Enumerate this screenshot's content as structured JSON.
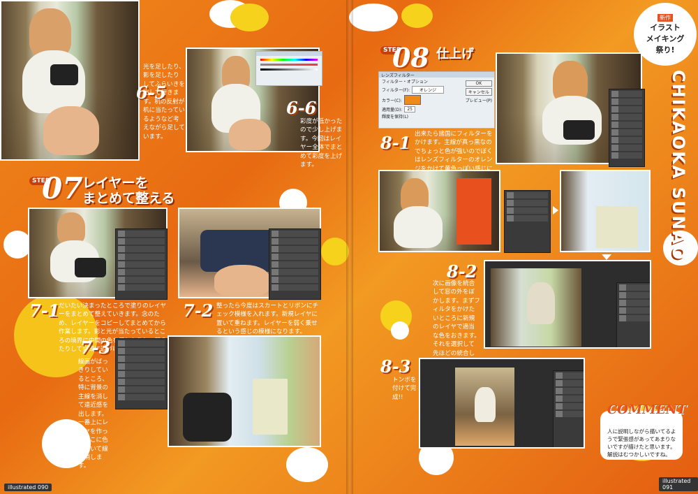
{
  "left_page": {
    "step07": {
      "badge": "STEP",
      "number": "07",
      "title_line1": "レイヤーを",
      "title_line2": "まとめて整える"
    },
    "s65": {
      "label": "6-5",
      "text": "光を足したり、影を足したりしてふらいきを出して行きます。机の反射が机に当たっているようなど考えながら足しています。"
    },
    "s66": {
      "label": "6-6",
      "text": "彩度が低かったので少し上げます。今回はレイヤー全体でまとめて彩度を上げます。"
    },
    "s71": {
      "label": "7-1",
      "text": "だいたい決まったところで塗りのレイヤーをまとめて整えていきます。念のため、レイヤーをコピーしてまとめてから作業します。影と光が当たっているところの境界に中間の色を足したりし、整えたりして完成に近づけます。"
    },
    "s72": {
      "label": "7-2",
      "text": "整ったら今度はスカートとリボンにチェック模様を入れます。新規レイヤに置いて重ねます。レイヤーを弱く乗せるという感じの模様になります。"
    },
    "s73": {
      "label": "7-3",
      "text": "線画がばっきりしているところ、特に背景の主線を消して遠近感を出します。一番上にレイヤを作ってそこに色を置いて線を消します。"
    },
    "folio": "illustrated 090"
  },
  "right_page": {
    "badge": {
      "new": "新作",
      "line1": "イラスト",
      "line2": "メイキング",
      "line3": "祭り!"
    },
    "vertical_title": "CHIKAOKA SUNAO",
    "step08": {
      "badge": "STEP",
      "number": "08",
      "title": "仕上げ"
    },
    "dialog": {
      "title": "レンズフィルター",
      "group": "フィルター・オプション",
      "filter_label": "フィルター(F):",
      "filter_value": "オレンジ",
      "color_label": "カラー(C):",
      "density_label": "適用量(D):",
      "density_value": "25",
      "preserve": "輝度を保持(L)",
      "ok": "OK",
      "cancel": "キャンセル",
      "preview": "プレビュー(P)"
    },
    "s81": {
      "label": "8-1",
      "text": "出来たら諸国にフィルターをかけます。主線が真っ黒なのでちょっと色が強いのでぼくはレンズフィルターのオレンジをかけて黄色っぽい感じにします。"
    },
    "s82": {
      "label": "8-2",
      "text": "次に画像を統合して窓の外をぼかします。まずフィルタをかけたいところに新規のレイヤで適当な色をおきます。それを選択して先ほどの統合した絵にぼかし（レンズ）フィルタをかけます。"
    },
    "s83": {
      "label": "8-3",
      "text": "トンボを付けて完成!!"
    },
    "comment": {
      "title": "COMMENT",
      "text": "人に説明しながら描いてるようで緊張感があってあまりないですが描けたと思います。解説はむつかしいですね。"
    },
    "folio": "illustrated 091"
  },
  "colors": {
    "background": "#e8741a",
    "accent_dark": "#c93f0a",
    "splash_yellow": "#f7d21c",
    "splash_white": "#ffffff"
  }
}
